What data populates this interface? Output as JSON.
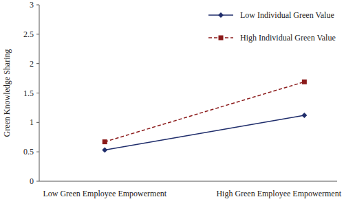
{
  "chart_data": {
    "type": "line",
    "y_label": "Green Knowledge Sharing",
    "categories": [
      "Low Green Employee Empowerment",
      "High Green Employee Empowerment"
    ],
    "series": [
      {
        "name": "Low Individual Green Value",
        "color": "#1f2d6b",
        "marker": "diamond",
        "line_style": "solid",
        "values": [
          0.53,
          1.12
        ]
      },
      {
        "name": "High Individual Green Value",
        "color": "#8b1a1a",
        "marker": "square",
        "line_style": "dashed",
        "values": [
          0.67,
          1.69
        ]
      }
    ],
    "ylim": [
      0,
      3
    ],
    "yticks": [
      0,
      0.5,
      1,
      1.5,
      2,
      2.5,
      3
    ],
    "legend": "top-right",
    "grid": false
  }
}
